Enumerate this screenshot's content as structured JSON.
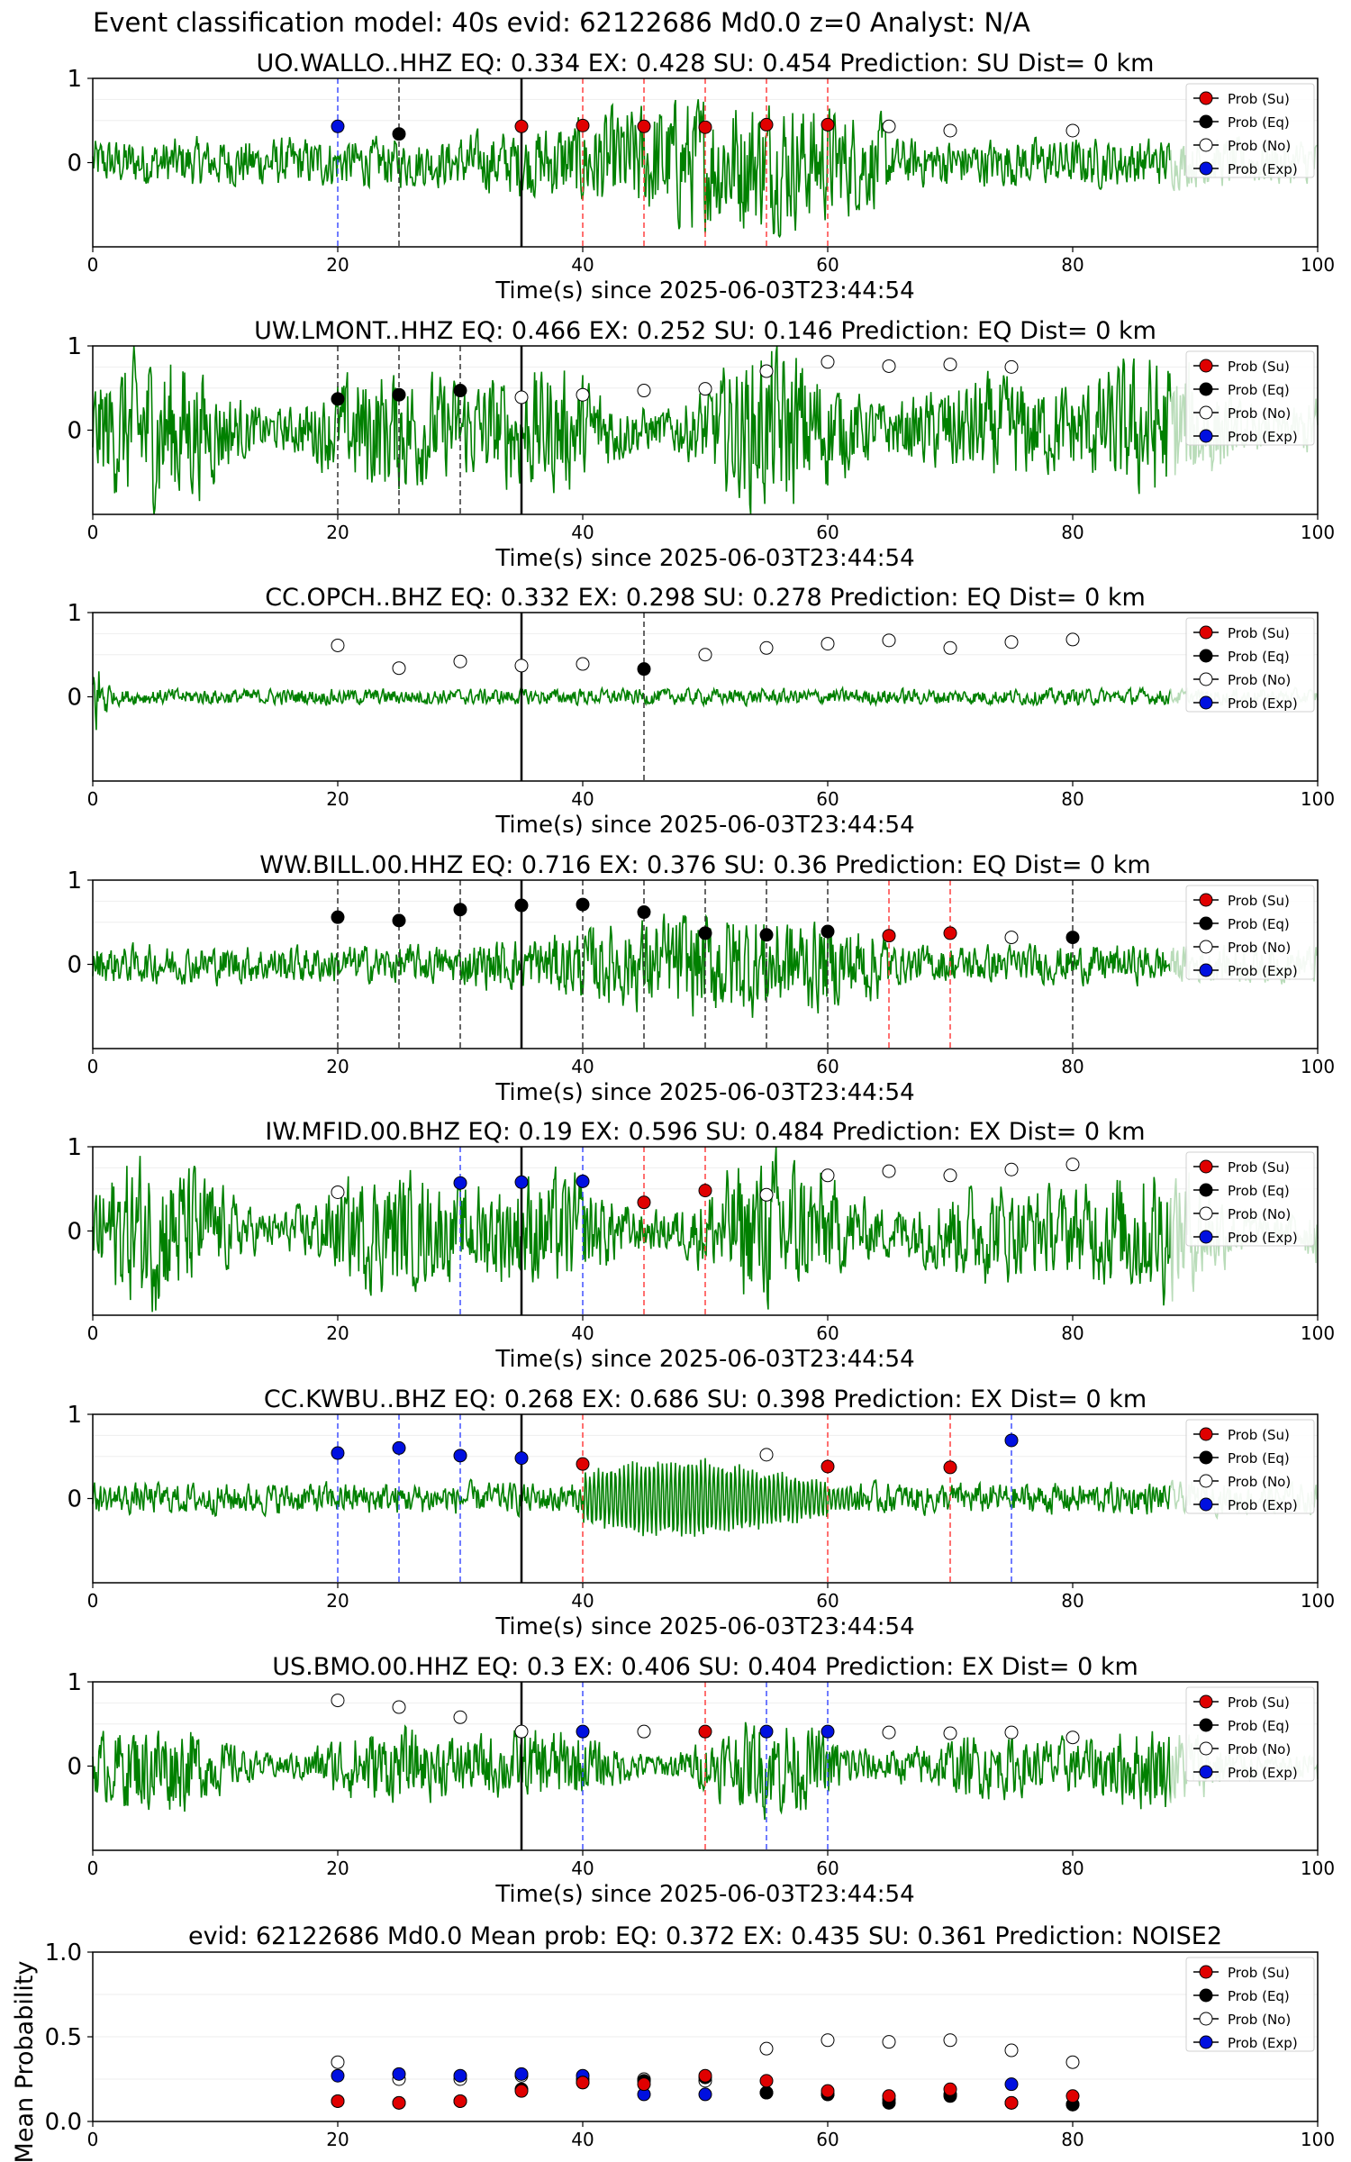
{
  "suptitle": "Event classification model: 40s evid: 62122686 Md0.0 z=0 Analyst: N/A",
  "legend": [
    "Prob (Su)",
    "Prob (Eq)",
    "Prob (No)",
    "Prob (Exp)"
  ],
  "colors": {
    "su": "#e00000",
    "eq": "#000000",
    "no": "#ffffff",
    "exp": "#0010e0",
    "trace": "#008000",
    "trace_tail": "#b9dcb9"
  },
  "chart_data": [
    {
      "type": "scatter",
      "title": "UO.WALLO..HHZ   EQ: 0.334  EX: 0.428  SU: 0.454   Prediction: SU    Dist= 0 km",
      "xlabel": "Time(s) since 2025-06-03T23:44:54",
      "xlim": [
        0,
        100
      ],
      "xticks": [
        "0",
        "20",
        "40",
        "60",
        "80",
        "100"
      ],
      "ylim": [
        -1,
        1
      ],
      "yticks": [
        "0",
        "1"
      ],
      "pick_time": 35,
      "waveform": {
        "amplitude": 0.7,
        "kind": "burst"
      },
      "points": [
        {
          "x": 20,
          "y": 0.43,
          "class": "exp"
        },
        {
          "x": 25,
          "y": 0.34,
          "class": "eq"
        },
        {
          "x": 35,
          "y": 0.43,
          "class": "su"
        },
        {
          "x": 40,
          "y": 0.44,
          "class": "su"
        },
        {
          "x": 45,
          "y": 0.43,
          "class": "su"
        },
        {
          "x": 50,
          "y": 0.42,
          "class": "su"
        },
        {
          "x": 55,
          "y": 0.45,
          "class": "su"
        },
        {
          "x": 60,
          "y": 0.45,
          "class": "su"
        },
        {
          "x": 65,
          "y": 0.43,
          "class": "no"
        },
        {
          "x": 70,
          "y": 0.38,
          "class": "no"
        },
        {
          "x": 80,
          "y": 0.38,
          "class": "no"
        }
      ]
    },
    {
      "type": "scatter",
      "title": "UW.LMONT..HHZ   EQ: 0.466  EX: 0.252  SU: 0.146   Prediction: EQ    Dist= 0 km",
      "xlabel": "Time(s) since 2025-06-03T23:44:54",
      "xlim": [
        0,
        100
      ],
      "xticks": [
        "0",
        "20",
        "40",
        "60",
        "80",
        "100"
      ],
      "ylim": [
        -1,
        1
      ],
      "yticks": [
        "0",
        "1"
      ],
      "pick_time": 35,
      "waveform": {
        "amplitude": 0.85,
        "kind": "noisy"
      },
      "points": [
        {
          "x": 20,
          "y": 0.37,
          "class": "eq"
        },
        {
          "x": 25,
          "y": 0.42,
          "class": "eq"
        },
        {
          "x": 30,
          "y": 0.47,
          "class": "eq"
        },
        {
          "x": 35,
          "y": 0.39,
          "class": "no"
        },
        {
          "x": 40,
          "y": 0.42,
          "class": "no"
        },
        {
          "x": 45,
          "y": 0.47,
          "class": "no"
        },
        {
          "x": 50,
          "y": 0.49,
          "class": "no"
        },
        {
          "x": 55,
          "y": 0.7,
          "class": "no"
        },
        {
          "x": 60,
          "y": 0.81,
          "class": "no"
        },
        {
          "x": 65,
          "y": 0.76,
          "class": "no"
        },
        {
          "x": 70,
          "y": 0.78,
          "class": "no"
        },
        {
          "x": 75,
          "y": 0.75,
          "class": "no"
        }
      ]
    },
    {
      "type": "scatter",
      "title": "CC.OPCH..BHZ   EQ: 0.332  EX: 0.298  SU: 0.278   Prediction: EQ    Dist= 0 km",
      "xlabel": "Time(s) since 2025-06-03T23:44:54",
      "xlim": [
        0,
        100
      ],
      "xticks": [
        "0",
        "20",
        "40",
        "60",
        "80",
        "100"
      ],
      "ylim": [
        -1,
        1
      ],
      "yticks": [
        "0",
        "1"
      ],
      "pick_time": 35,
      "waveform": {
        "amplitude": 0.18,
        "kind": "quiet"
      },
      "points": [
        {
          "x": 20,
          "y": 0.61,
          "class": "no"
        },
        {
          "x": 25,
          "y": 0.34,
          "class": "no"
        },
        {
          "x": 30,
          "y": 0.42,
          "class": "no"
        },
        {
          "x": 35,
          "y": 0.37,
          "class": "no"
        },
        {
          "x": 40,
          "y": 0.39,
          "class": "no"
        },
        {
          "x": 45,
          "y": 0.33,
          "class": "eq"
        },
        {
          "x": 50,
          "y": 0.5,
          "class": "no"
        },
        {
          "x": 55,
          "y": 0.58,
          "class": "no"
        },
        {
          "x": 60,
          "y": 0.63,
          "class": "no"
        },
        {
          "x": 65,
          "y": 0.67,
          "class": "no"
        },
        {
          "x": 70,
          "y": 0.58,
          "class": "no"
        },
        {
          "x": 75,
          "y": 0.65,
          "class": "no"
        },
        {
          "x": 80,
          "y": 0.68,
          "class": "no"
        }
      ]
    },
    {
      "type": "scatter",
      "title": "WW.BILL.00.HHZ   EQ: 0.716  EX: 0.376  SU: 0.36   Prediction: EQ    Dist= 0 km",
      "xlabel": "Time(s) since 2025-06-03T23:44:54",
      "xlim": [
        0,
        100
      ],
      "xticks": [
        "0",
        "20",
        "40",
        "60",
        "80",
        "100"
      ],
      "ylim": [
        -1,
        1
      ],
      "yticks": [
        "0",
        "1"
      ],
      "pick_time": 35,
      "waveform": {
        "amplitude": 0.55,
        "kind": "burst"
      },
      "points": [
        {
          "x": 20,
          "y": 0.56,
          "class": "eq"
        },
        {
          "x": 25,
          "y": 0.52,
          "class": "eq"
        },
        {
          "x": 30,
          "y": 0.65,
          "class": "eq"
        },
        {
          "x": 35,
          "y": 0.7,
          "class": "eq"
        },
        {
          "x": 40,
          "y": 0.71,
          "class": "eq"
        },
        {
          "x": 45,
          "y": 0.62,
          "class": "eq"
        },
        {
          "x": 50,
          "y": 0.37,
          "class": "eq"
        },
        {
          "x": 55,
          "y": 0.35,
          "class": "eq"
        },
        {
          "x": 60,
          "y": 0.39,
          "class": "eq"
        },
        {
          "x": 65,
          "y": 0.34,
          "class": "su"
        },
        {
          "x": 70,
          "y": 0.37,
          "class": "su"
        },
        {
          "x": 75,
          "y": 0.32,
          "class": "no"
        },
        {
          "x": 80,
          "y": 0.32,
          "class": "eq"
        }
      ]
    },
    {
      "type": "scatter",
      "title": "IW.MFID.00.BHZ   EQ: 0.19  EX: 0.596  SU: 0.484   Prediction: EX    Dist= 0 km",
      "xlabel": "Time(s) since 2025-06-03T23:44:54",
      "xlim": [
        0,
        100
      ],
      "xticks": [
        "0",
        "20",
        "40",
        "60",
        "80",
        "100"
      ],
      "ylim": [
        -1,
        1
      ],
      "yticks": [
        "0",
        "1"
      ],
      "pick_time": 35,
      "waveform": {
        "amplitude": 0.8,
        "kind": "noisy"
      },
      "points": [
        {
          "x": 20,
          "y": 0.46,
          "class": "no"
        },
        {
          "x": 30,
          "y": 0.57,
          "class": "exp"
        },
        {
          "x": 35,
          "y": 0.58,
          "class": "exp"
        },
        {
          "x": 40,
          "y": 0.59,
          "class": "exp"
        },
        {
          "x": 45,
          "y": 0.34,
          "class": "su"
        },
        {
          "x": 50,
          "y": 0.48,
          "class": "su"
        },
        {
          "x": 55,
          "y": 0.43,
          "class": "no"
        },
        {
          "x": 60,
          "y": 0.66,
          "class": "no"
        },
        {
          "x": 65,
          "y": 0.71,
          "class": "no"
        },
        {
          "x": 70,
          "y": 0.66,
          "class": "no"
        },
        {
          "x": 75,
          "y": 0.73,
          "class": "no"
        },
        {
          "x": 80,
          "y": 0.79,
          "class": "no"
        }
      ]
    },
    {
      "type": "scatter",
      "title": "CC.KWBU..BHZ   EQ: 0.268  EX: 0.686  SU: 0.398   Prediction: EX    Dist= 0 km",
      "xlabel": "Time(s) since 2025-06-03T23:44:54",
      "xlim": [
        0,
        100
      ],
      "xticks": [
        "0",
        "20",
        "40",
        "60",
        "80",
        "100"
      ],
      "ylim": [
        -1,
        1
      ],
      "yticks": [
        "0",
        "1"
      ],
      "pick_time": 35,
      "waveform": {
        "amplitude": 0.45,
        "kind": "oscill"
      },
      "points": [
        {
          "x": 20,
          "y": 0.54,
          "class": "exp"
        },
        {
          "x": 25,
          "y": 0.6,
          "class": "exp"
        },
        {
          "x": 30,
          "y": 0.51,
          "class": "exp"
        },
        {
          "x": 35,
          "y": 0.48,
          "class": "exp"
        },
        {
          "x": 40,
          "y": 0.41,
          "class": "su"
        },
        {
          "x": 55,
          "y": 0.52,
          "class": "no"
        },
        {
          "x": 60,
          "y": 0.38,
          "class": "su"
        },
        {
          "x": 70,
          "y": 0.37,
          "class": "su"
        },
        {
          "x": 75,
          "y": 0.69,
          "class": "exp"
        }
      ]
    },
    {
      "type": "scatter",
      "title": "US.BMO.00.HHZ   EQ: 0.3  EX: 0.406  SU: 0.404   Prediction: EX    Dist= 0 km",
      "xlabel": "Time(s) since 2025-06-03T23:44:54",
      "xlim": [
        0,
        100
      ],
      "xticks": [
        "0",
        "20",
        "40",
        "60",
        "80",
        "100"
      ],
      "ylim": [
        -1,
        1
      ],
      "yticks": [
        "0",
        "1"
      ],
      "pick_time": 35,
      "waveform": {
        "amplitude": 0.5,
        "kind": "noisy"
      },
      "points": [
        {
          "x": 20,
          "y": 0.78,
          "class": "no"
        },
        {
          "x": 25,
          "y": 0.7,
          "class": "no"
        },
        {
          "x": 30,
          "y": 0.58,
          "class": "no"
        },
        {
          "x": 35,
          "y": 0.41,
          "class": "no"
        },
        {
          "x": 40,
          "y": 0.41,
          "class": "exp"
        },
        {
          "x": 45,
          "y": 0.41,
          "class": "no"
        },
        {
          "x": 50,
          "y": 0.41,
          "class": "su"
        },
        {
          "x": 55,
          "y": 0.41,
          "class": "exp"
        },
        {
          "x": 60,
          "y": 0.41,
          "class": "exp"
        },
        {
          "x": 65,
          "y": 0.4,
          "class": "no"
        },
        {
          "x": 70,
          "y": 0.39,
          "class": "no"
        },
        {
          "x": 75,
          "y": 0.4,
          "class": "no"
        },
        {
          "x": 80,
          "y": 0.34,
          "class": "no"
        }
      ]
    },
    {
      "type": "scatter",
      "title": "evid: 62122686  Md0.0   Mean prob:   EQ: 0.372  EX: 0.435  SU: 0.361   Prediction: NOISE2",
      "xlabel": "",
      "ylabel": "Mean Probability",
      "xlim": [
        0,
        100
      ],
      "xticks": [
        "0",
        "20",
        "40",
        "60",
        "80",
        "100"
      ],
      "ylim": [
        0,
        1
      ],
      "yticks": [
        "0.0",
        "0.5",
        "1.0"
      ],
      "x": [
        20,
        25,
        30,
        35,
        40,
        45,
        50,
        55,
        60,
        65,
        70,
        75,
        80
      ],
      "series": [
        {
          "name": "Prob (No)",
          "class": "no",
          "values": [
            0.35,
            0.25,
            0.25,
            0.27,
            0.25,
            0.25,
            0.24,
            0.43,
            0.48,
            0.47,
            0.48,
            0.42,
            0.35
          ]
        },
        {
          "name": "Prob (Exp)",
          "class": "exp",
          "values": [
            0.27,
            0.28,
            0.27,
            0.28,
            0.27,
            0.16,
            0.16,
            0.17,
            0.16,
            0.13,
            0.16,
            0.22,
            0.1
          ]
        },
        {
          "name": "Prob (Eq)",
          "class": "eq",
          "values": [
            0.12,
            0.11,
            0.12,
            0.19,
            0.23,
            0.24,
            0.26,
            0.17,
            0.16,
            0.11,
            0.15,
            0.11,
            0.1
          ]
        },
        {
          "name": "Prob (Su)",
          "class": "su",
          "values": [
            0.12,
            0.11,
            0.12,
            0.18,
            0.23,
            0.22,
            0.27,
            0.24,
            0.18,
            0.15,
            0.19,
            0.11,
            0.15
          ]
        }
      ]
    }
  ]
}
